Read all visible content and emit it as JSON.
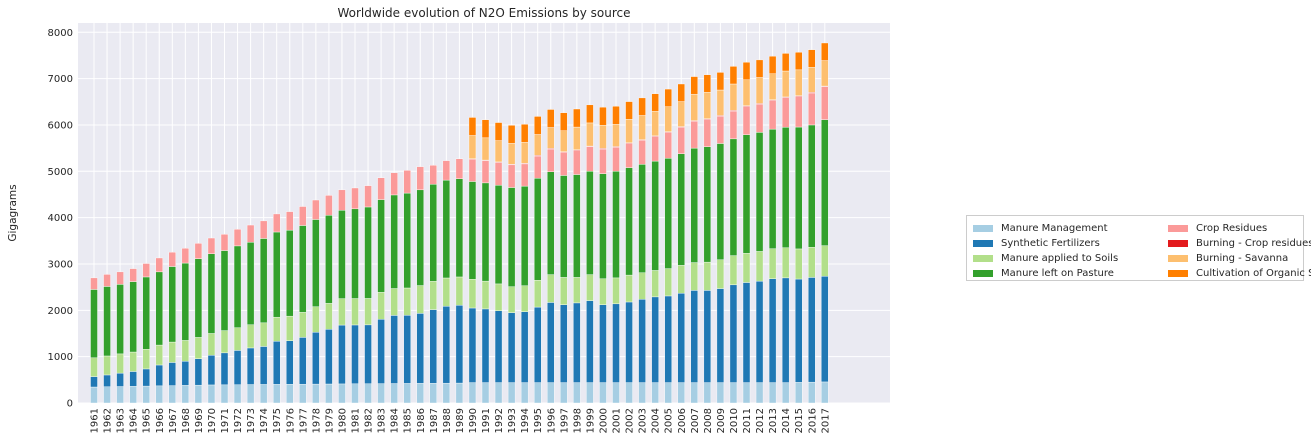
{
  "chart_data": {
    "type": "bar",
    "stacked": true,
    "title": "Worldwide evolution of N2O Emissions by source",
    "xlabel": "",
    "ylabel": "Gigagrams",
    "ylim": [
      0,
      8200
    ],
    "yticks": [
      0,
      1000,
      2000,
      3000,
      4000,
      5000,
      6000,
      7000,
      8000
    ],
    "grid": true,
    "legend_position": "right",
    "categories": [
      "1961",
      "1962",
      "1963",
      "1964",
      "1965",
      "1966",
      "1967",
      "1968",
      "1969",
      "1970",
      "1971",
      "1972",
      "1973",
      "1974",
      "1975",
      "1976",
      "1977",
      "1978",
      "1979",
      "1980",
      "1981",
      "1982",
      "1983",
      "1984",
      "1985",
      "1986",
      "1987",
      "1988",
      "1989",
      "1990",
      "1991",
      "1992",
      "1993",
      "1994",
      "1995",
      "1996",
      "1997",
      "1998",
      "1999",
      "2000",
      "2001",
      "2002",
      "2003",
      "2004",
      "2005",
      "2006",
      "2007",
      "2008",
      "2009",
      "2010",
      "2011",
      "2012",
      "2013",
      "2014",
      "2015",
      "2016",
      "2017"
    ],
    "series": [
      {
        "name": "Manure Management",
        "color": "#a6cee3",
        "values": [
          345,
          350,
          355,
          360,
          365,
          370,
          375,
          380,
          385,
          390,
          392,
          395,
          398,
          400,
          402,
          404,
          406,
          408,
          410,
          412,
          414,
          416,
          418,
          420,
          422,
          424,
          426,
          428,
          430,
          440,
          440,
          440,
          440,
          440,
          440,
          440,
          440,
          440,
          440,
          440,
          440,
          440,
          440,
          440,
          440,
          440,
          440,
          440,
          440,
          440,
          440,
          440,
          440,
          440,
          445,
          450,
          455
        ]
      },
      {
        "name": "Synthetic Fertilizers",
        "color": "#1f78b4",
        "values": [
          225,
          255,
          290,
          320,
          370,
          450,
          500,
          520,
          570,
          640,
          690,
          740,
          790,
          820,
          930,
          940,
          1010,
          1120,
          1180,
          1270,
          1270,
          1270,
          1390,
          1470,
          1470,
          1510,
          1590,
          1660,
          1680,
          1610,
          1590,
          1550,
          1510,
          1530,
          1630,
          1730,
          1680,
          1720,
          1770,
          1680,
          1700,
          1740,
          1800,
          1850,
          1870,
          1930,
          1990,
          1990,
          2030,
          2110,
          2160,
          2190,
          2240,
          2260,
          2230,
          2260,
          2280
        ]
      },
      {
        "name": "Manure applied to Soils",
        "color": "#b2df8a",
        "values": [
          405,
          410,
          415,
          420,
          425,
          430,
          440,
          450,
          460,
          470,
          480,
          490,
          500,
          510,
          520,
          530,
          540,
          550,
          560,
          570,
          570,
          570,
          580,
          580,
          590,
          600,
          610,
          610,
          610,
          620,
          600,
          580,
          560,
          560,
          580,
          600,
          590,
          550,
          560,
          560,
          560,
          580,
          570,
          570,
          590,
          600,
          600,
          610,
          620,
          630,
          630,
          640,
          650,
          650,
          650,
          650,
          660
        ]
      },
      {
        "name": "Manure left on Pasture",
        "color": "#33a02c",
        "values": [
          1475,
          1500,
          1500,
          1520,
          1560,
          1580,
          1630,
          1670,
          1700,
          1720,
          1728,
          1765,
          1782,
          1820,
          1838,
          1856,
          1874,
          1882,
          1900,
          1908,
          1936,
          1974,
          2002,
          2020,
          2048,
          2066,
          2094,
          2112,
          2120,
          2110,
          2120,
          2130,
          2140,
          2150,
          2200,
          2220,
          2200,
          2220,
          2230,
          2270,
          2300,
          2320,
          2340,
          2360,
          2380,
          2410,
          2470,
          2490,
          2510,
          2520,
          2560,
          2570,
          2580,
          2600,
          2630,
          2640,
          2720
        ]
      },
      {
        "name": "Crop Residues",
        "color": "#fb9a99",
        "values": [
          250,
          260,
          270,
          280,
          290,
          300,
          310,
          320,
          330,
          340,
          350,
          360,
          370,
          380,
          390,
          400,
          410,
          420,
          430,
          440,
          450,
          460,
          470,
          480,
          490,
          500,
          410,
          420,
          430,
          480,
          480,
          490,
          490,
          480,
          480,
          490,
          500,
          520,
          530,
          530,
          520,
          520,
          520,
          530,
          560,
          570,
          580,
          590,
          590,
          600,
          610,
          610,
          620,
          640,
          660,
          690,
          710
        ]
      },
      {
        "name": "Burning - Crop residues",
        "color": "#e31a1c",
        "values": [
          0,
          0,
          0,
          0,
          0,
          0,
          0,
          0,
          0,
          0,
          0,
          0,
          0,
          0,
          0,
          0,
          0,
          0,
          0,
          0,
          0,
          0,
          0,
          0,
          0,
          0,
          0,
          0,
          0,
          12,
          12,
          12,
          12,
          14,
          14,
          14,
          14,
          14,
          14,
          14,
          14,
          14,
          14,
          14,
          14,
          14,
          14,
          14,
          14,
          14,
          14,
          14,
          14,
          14,
          14,
          14,
          14
        ]
      },
      {
        "name": "Burning - Savanna",
        "color": "#fdbf6f",
        "values": [
          0,
          0,
          0,
          0,
          0,
          0,
          0,
          0,
          0,
          0,
          0,
          0,
          0,
          0,
          0,
          0,
          0,
          0,
          0,
          0,
          0,
          0,
          0,
          0,
          0,
          0,
          0,
          0,
          0,
          500,
          480,
          460,
          450,
          450,
          450,
          450,
          450,
          490,
          500,
          500,
          480,
          510,
          520,
          530,
          540,
          540,
          570,
          570,
          550,
          570,
          560,
          560,
          560,
          560,
          560,
          540,
          550
        ]
      },
      {
        "name": "Cultivation of Organic Soils",
        "color": "#ff7f00",
        "values": [
          0,
          0,
          0,
          0,
          0,
          0,
          0,
          0,
          0,
          0,
          0,
          0,
          0,
          0,
          0,
          0,
          0,
          0,
          0,
          0,
          0,
          0,
          0,
          0,
          0,
          0,
          0,
          0,
          0,
          390,
          390,
          390,
          390,
          390,
          390,
          390,
          390,
          390,
          390,
          390,
          390,
          380,
          380,
          380,
          380,
          380,
          380,
          380,
          380,
          380,
          380,
          380,
          380,
          380,
          380,
          380,
          380
        ]
      }
    ]
  }
}
